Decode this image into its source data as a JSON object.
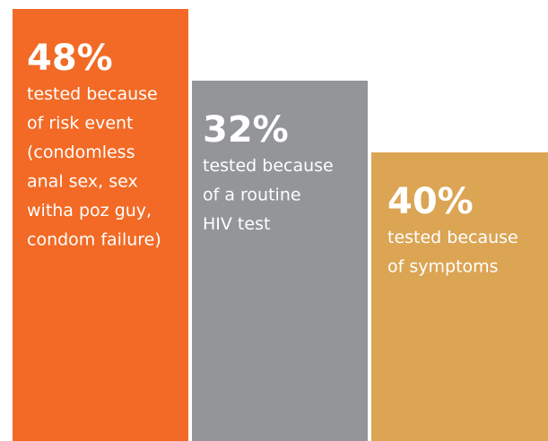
{
  "panels": [
    {
      "figure": "48%",
      "lines": [
        "tested because",
        "of risk event",
        "(condomless",
        "anal sex, sex",
        "witha poz guy,",
        "condom failure)"
      ]
    },
    {
      "figure": "32%",
      "lines": [
        "tested because",
        "of a routine",
        "HIV test"
      ]
    },
    {
      "figure": "40%",
      "lines": [
        "tested because",
        "of symptoms"
      ]
    }
  ]
}
